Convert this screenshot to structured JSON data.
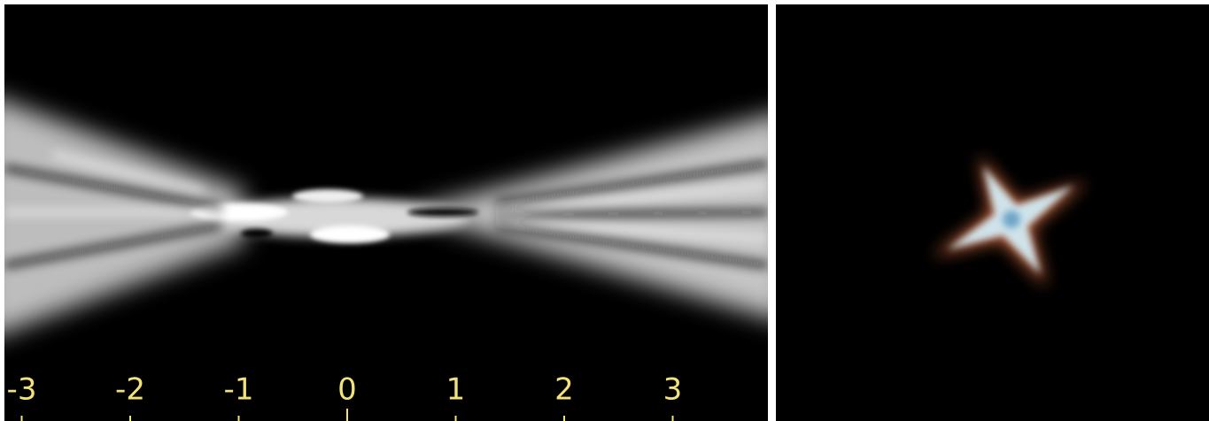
{
  "axis": {
    "ticks": [
      -3,
      -2,
      -1,
      0,
      1,
      2,
      3
    ]
  }
}
